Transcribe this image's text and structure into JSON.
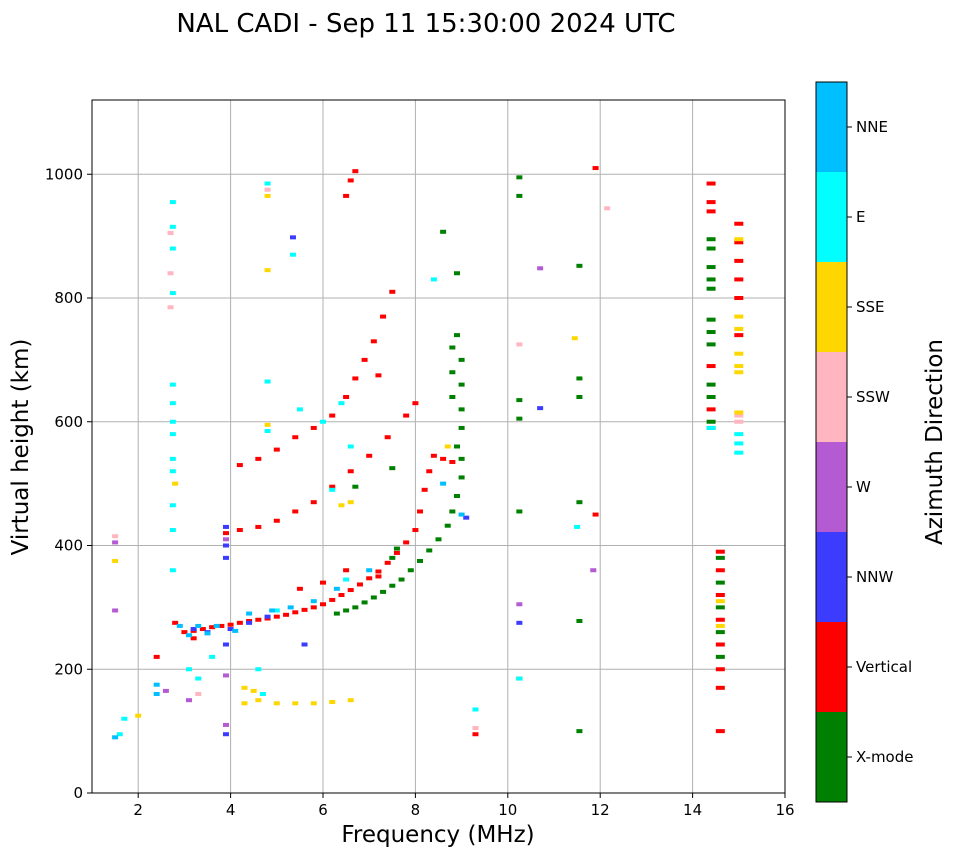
{
  "chart_data": {
    "type": "scatter",
    "title": "NAL CADI - Sep 11 15:30:00 2024 UTC",
    "xlabel": "Frequency (MHz)",
    "ylabel": "Virtual height (km)",
    "xlim": [
      1,
      16
    ],
    "ylim": [
      0,
      1120
    ],
    "xticks": [
      2,
      4,
      6,
      8,
      10,
      12,
      14,
      16
    ],
    "yticks": [
      0,
      200,
      400,
      600,
      800,
      1000
    ],
    "grid": true,
    "colorbar": {
      "label": "Azimuth Direction",
      "categories": [
        {
          "name": "X-mode",
          "color": "#008000"
        },
        {
          "name": "Vertical",
          "color": "#ff0000"
        },
        {
          "name": "NNW",
          "color": "#3c3cff"
        },
        {
          "name": "W",
          "color": "#b45ad2"
        },
        {
          "name": "SSW",
          "color": "#ffb6c1"
        },
        {
          "name": "SSE",
          "color": "#ffd700"
        },
        {
          "name": "E",
          "color": "#00ffff"
        },
        {
          "name": "NNE",
          "color": "#00bfff"
        }
      ]
    },
    "series": [
      {
        "name": "X-mode",
        "points": [
          [
            6.3,
            290
          ],
          [
            6.5,
            295
          ],
          [
            6.7,
            300
          ],
          [
            6.9,
            308
          ],
          [
            7.1,
            316
          ],
          [
            7.3,
            325
          ],
          [
            7.5,
            335
          ],
          [
            7.7,
            345
          ],
          [
            7.9,
            360
          ],
          [
            8.1,
            375
          ],
          [
            8.3,
            392
          ],
          [
            8.5,
            410
          ],
          [
            8.7,
            432
          ],
          [
            8.8,
            455
          ],
          [
            8.9,
            480
          ],
          [
            9.0,
            510
          ],
          [
            9.0,
            540
          ],
          [
            8.9,
            560
          ],
          [
            9.0,
            590
          ],
          [
            9.0,
            620
          ],
          [
            8.8,
            640
          ],
          [
            9.0,
            660
          ],
          [
            8.8,
            680
          ],
          [
            9.0,
            700
          ],
          [
            8.8,
            720
          ],
          [
            8.9,
            740
          ],
          [
            8.6,
            907
          ],
          [
            8.9,
            840
          ],
          [
            7.5,
            525
          ],
          [
            7.6,
            395
          ],
          [
            7.5,
            380
          ],
          [
            6.7,
            495
          ],
          [
            10.25,
            185
          ],
          [
            10.25,
            455
          ],
          [
            10.25,
            605
          ],
          [
            10.25,
            635
          ],
          [
            10.25,
            965
          ],
          [
            10.25,
            995
          ],
          [
            11.55,
            100
          ],
          [
            11.55,
            278
          ],
          [
            11.55,
            470
          ],
          [
            11.55,
            640
          ],
          [
            11.55,
            670
          ],
          [
            11.55,
            852
          ],
          [
            14.4,
            600
          ],
          [
            14.4,
            640
          ],
          [
            14.4,
            660
          ],
          [
            14.4,
            725
          ],
          [
            14.4,
            745
          ],
          [
            14.4,
            765
          ],
          [
            14.4,
            815
          ],
          [
            14.4,
            830
          ],
          [
            14.4,
            850
          ],
          [
            14.4,
            880
          ],
          [
            14.4,
            895
          ],
          [
            14.6,
            380
          ],
          [
            14.6,
            340
          ],
          [
            14.6,
            300
          ],
          [
            14.6,
            260
          ],
          [
            14.6,
            220
          ]
        ]
      },
      {
        "name": "Vertical",
        "points": [
          [
            3.0,
            260
          ],
          [
            3.2,
            262
          ],
          [
            3.4,
            265
          ],
          [
            3.6,
            268
          ],
          [
            3.8,
            270
          ],
          [
            4.0,
            272
          ],
          [
            4.2,
            275
          ],
          [
            4.4,
            278
          ],
          [
            4.6,
            280
          ],
          [
            4.8,
            282
          ],
          [
            5.0,
            285
          ],
          [
            5.2,
            288
          ],
          [
            5.4,
            292
          ],
          [
            5.6,
            296
          ],
          [
            5.8,
            300
          ],
          [
            6.0,
            305
          ],
          [
            6.2,
            312
          ],
          [
            6.4,
            320
          ],
          [
            6.6,
            328
          ],
          [
            6.8,
            337
          ],
          [
            7.0,
            347
          ],
          [
            7.2,
            358
          ],
          [
            7.4,
            372
          ],
          [
            7.6,
            388
          ],
          [
            7.8,
            405
          ],
          [
            8.0,
            425
          ],
          [
            8.1,
            455
          ],
          [
            8.2,
            490
          ],
          [
            8.3,
            520
          ],
          [
            8.4,
            545
          ],
          [
            8.6,
            540
          ],
          [
            8.8,
            535
          ],
          [
            4.2,
            530
          ],
          [
            4.6,
            540
          ],
          [
            5.0,
            555
          ],
          [
            5.4,
            575
          ],
          [
            5.8,
            590
          ],
          [
            6.2,
            610
          ],
          [
            6.5,
            640
          ],
          [
            6.7,
            670
          ],
          [
            6.9,
            700
          ],
          [
            7.1,
            730
          ],
          [
            7.3,
            770
          ],
          [
            7.5,
            810
          ],
          [
            3.9,
            420
          ],
          [
            4.2,
            425
          ],
          [
            4.6,
            430
          ],
          [
            5.0,
            440
          ],
          [
            5.4,
            455
          ],
          [
            5.8,
            470
          ],
          [
            6.2,
            495
          ],
          [
            6.6,
            520
          ],
          [
            7.0,
            545
          ],
          [
            7.4,
            575
          ],
          [
            7.8,
            610
          ],
          [
            8.0,
            630
          ],
          [
            2.4,
            220
          ],
          [
            2.8,
            275
          ],
          [
            3.2,
            250
          ],
          [
            5.5,
            330
          ],
          [
            6.0,
            340
          ],
          [
            6.5,
            360
          ],
          [
            7.2,
            350
          ],
          [
            6.5,
            965
          ],
          [
            6.6,
            990
          ],
          [
            6.7,
            1005
          ],
          [
            11.9,
            1010
          ],
          [
            11.9,
            450
          ],
          [
            9.3,
            95
          ],
          [
            7.2,
            675
          ],
          [
            14.4,
            985
          ],
          [
            14.4,
            955
          ],
          [
            14.4,
            940
          ],
          [
            14.4,
            690
          ],
          [
            14.4,
            620
          ],
          [
            14.4,
            590
          ],
          [
            14.6,
            100
          ],
          [
            14.6,
            390
          ],
          [
            14.6,
            360
          ],
          [
            14.6,
            320
          ],
          [
            14.6,
            280
          ],
          [
            14.6,
            240
          ],
          [
            14.6,
            200
          ],
          [
            14.6,
            170
          ],
          [
            15.0,
            920
          ],
          [
            15.0,
            890
          ],
          [
            15.0,
            860
          ],
          [
            15.0,
            830
          ],
          [
            15.0,
            800
          ],
          [
            15.0,
            740
          ]
        ]
      },
      {
        "name": "NNW",
        "points": [
          [
            3.9,
            430
          ],
          [
            3.9,
            400
          ],
          [
            3.9,
            380
          ],
          [
            3.9,
            240
          ],
          [
            3.9,
            95
          ],
          [
            5.35,
            898
          ],
          [
            5.6,
            240
          ],
          [
            9.1,
            445
          ],
          [
            10.25,
            275
          ],
          [
            10.7,
            622
          ],
          [
            3.2,
            265
          ],
          [
            3.5,
            260
          ],
          [
            4.0,
            265
          ],
          [
            4.4,
            275
          ],
          [
            4.8,
            285
          ]
        ]
      },
      {
        "name": "W",
        "points": [
          [
            1.5,
            405
          ],
          [
            1.5,
            295
          ],
          [
            3.9,
            410
          ],
          [
            3.9,
            190
          ],
          [
            3.9,
            110
          ],
          [
            10.25,
            305
          ],
          [
            10.7,
            848
          ],
          [
            11.85,
            360
          ],
          [
            2.6,
            165
          ],
          [
            3.1,
            150
          ]
        ]
      },
      {
        "name": "SSW",
        "points": [
          [
            1.5,
            415
          ],
          [
            2.7,
            905
          ],
          [
            2.7,
            840
          ],
          [
            2.7,
            785
          ],
          [
            4.8,
            975
          ],
          [
            10.25,
            725
          ],
          [
            12.15,
            945
          ],
          [
            9.3,
            105
          ],
          [
            3.3,
            160
          ],
          [
            15.0,
            610
          ],
          [
            15.0,
            600
          ]
        ]
      },
      {
        "name": "SSE",
        "points": [
          [
            1.5,
            375
          ],
          [
            2.0,
            125
          ],
          [
            4.3,
            145
          ],
          [
            4.6,
            150
          ],
          [
            5.0,
            145
          ],
          [
            5.4,
            145
          ],
          [
            5.8,
            145
          ],
          [
            6.2,
            147
          ],
          [
            6.6,
            150
          ],
          [
            4.3,
            170
          ],
          [
            4.5,
            165
          ],
          [
            11.45,
            735
          ],
          [
            2.8,
            500
          ],
          [
            6.6,
            470
          ],
          [
            6.4,
            465
          ],
          [
            8.7,
            560
          ],
          [
            15.0,
            770
          ],
          [
            15.0,
            750
          ],
          [
            15.0,
            710
          ],
          [
            15.0,
            690
          ],
          [
            15.0,
            680
          ],
          [
            15.0,
            895
          ],
          [
            15.0,
            615
          ],
          [
            14.6,
            310
          ],
          [
            14.6,
            270
          ],
          [
            4.8,
            965
          ],
          [
            4.8,
            845
          ],
          [
            4.8,
            595
          ]
        ]
      },
      {
        "name": "E",
        "points": [
          [
            1.6,
            95
          ],
          [
            2.75,
            955
          ],
          [
            2.75,
            915
          ],
          [
            2.75,
            880
          ],
          [
            2.75,
            808
          ],
          [
            2.75,
            660
          ],
          [
            2.75,
            630
          ],
          [
            2.75,
            600
          ],
          [
            2.75,
            580
          ],
          [
            2.75,
            540
          ],
          [
            2.75,
            520
          ],
          [
            2.75,
            465
          ],
          [
            2.75,
            425
          ],
          [
            2.75,
            360
          ],
          [
            4.8,
            985
          ],
          [
            4.8,
            665
          ],
          [
            4.8,
            585
          ],
          [
            5.35,
            870
          ],
          [
            4.6,
            200
          ],
          [
            3.1,
            200
          ],
          [
            3.3,
            185
          ],
          [
            3.6,
            220
          ],
          [
            5.5,
            620
          ],
          [
            6.0,
            600
          ],
          [
            6.4,
            630
          ],
          [
            6.6,
            560
          ],
          [
            6.2,
            490
          ],
          [
            6.5,
            345
          ],
          [
            5.0,
            295
          ],
          [
            8.4,
            830
          ],
          [
            10.25,
            185
          ],
          [
            11.5,
            430
          ],
          [
            14.4,
            590
          ],
          [
            15.0,
            580
          ],
          [
            15.0,
            565
          ],
          [
            15.0,
            550
          ],
          [
            9.3,
            135
          ],
          [
            4.7,
            160
          ],
          [
            1.7,
            120
          ]
        ]
      },
      {
        "name": "NNE",
        "points": [
          [
            1.5,
            90
          ],
          [
            2.9,
            270
          ],
          [
            3.1,
            255
          ],
          [
            3.3,
            270
          ],
          [
            3.5,
            258
          ],
          [
            4.1,
            262
          ],
          [
            4.4,
            290
          ],
          [
            4.9,
            295
          ],
          [
            5.3,
            300
          ],
          [
            6.3,
            330
          ],
          [
            7.0,
            360
          ],
          [
            9.0,
            450
          ],
          [
            8.6,
            500
          ],
          [
            2.4,
            175
          ],
          [
            2.4,
            160
          ],
          [
            3.7,
            270
          ],
          [
            5.8,
            310
          ]
        ]
      }
    ]
  }
}
